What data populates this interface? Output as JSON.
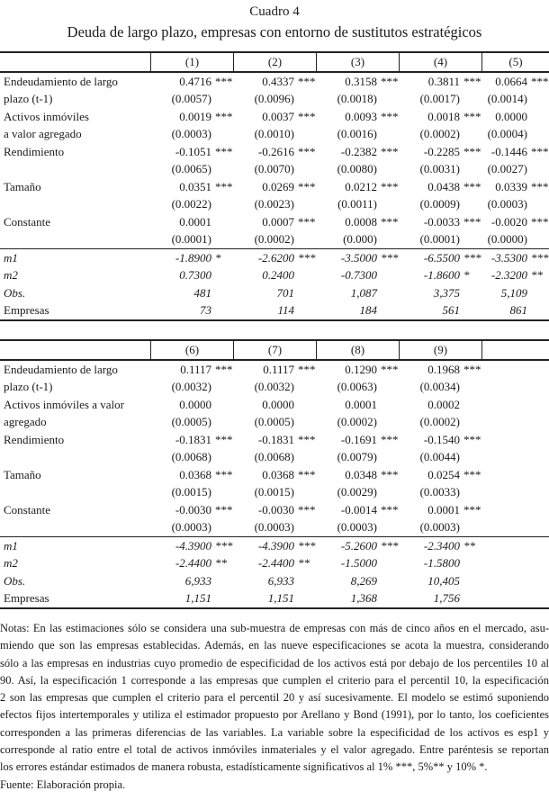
{
  "title": "Cuadro 4",
  "subtitle": "Deuda de largo plazo, empresas con entorno de sustitutos estratégicos",
  "colors": {
    "text": "#1b1b1b",
    "rule": "#222222",
    "background": "#ffffff"
  },
  "tables": [
    {
      "columns": [
        "(1)",
        "(2)",
        "(3)",
        "(4)",
        "(5)"
      ],
      "trailing_blank_header_cell": false,
      "coef_rows": [
        {
          "label": "Endeudamiento de largo",
          "cells": [
            [
              "0.4716",
              "***"
            ],
            [
              "0.4337",
              "***"
            ],
            [
              "0.3158",
              "***"
            ],
            [
              "0.3811",
              "***"
            ],
            [
              "0.0664",
              "***"
            ]
          ]
        },
        {
          "label": "plazo (t-1)",
          "cells": [
            [
              "(0.0057)",
              ""
            ],
            [
              "(0.0096)",
              ""
            ],
            [
              "(0.0018)",
              ""
            ],
            [
              "(0.0017)",
              ""
            ],
            [
              "(0.0014)",
              ""
            ]
          ]
        },
        {
          "label": "Activos inmóviles",
          "cells": [
            [
              "0.0019",
              "***"
            ],
            [
              "0.0037",
              "***"
            ],
            [
              "0.0093",
              "***"
            ],
            [
              "0.0018",
              "***"
            ],
            [
              "0.0000",
              ""
            ]
          ]
        },
        {
          "label": "a valor agregado",
          "cells": [
            [
              "(0.0003)",
              ""
            ],
            [
              "(0.0010)",
              ""
            ],
            [
              "(0.0016)",
              ""
            ],
            [
              "(0.0002)",
              ""
            ],
            [
              "(0.0004)",
              ""
            ]
          ]
        },
        {
          "label": "Rendimiento",
          "cells": [
            [
              "-0.1051",
              "***"
            ],
            [
              "-0.2616",
              "***"
            ],
            [
              "-0.2382",
              "***"
            ],
            [
              "-0.2285",
              "***"
            ],
            [
              "-0.1446",
              "***"
            ]
          ]
        },
        {
          "label": "",
          "cells": [
            [
              "(0.0065)",
              ""
            ],
            [
              "(0.0070)",
              ""
            ],
            [
              "(0.0080)",
              ""
            ],
            [
              "(0.0031)",
              ""
            ],
            [
              "(0.0027)",
              ""
            ]
          ]
        },
        {
          "label": "Tamaño",
          "cells": [
            [
              "0.0351",
              "***"
            ],
            [
              "0.0269",
              "***"
            ],
            [
              "0.0212",
              "***"
            ],
            [
              "0.0438",
              "***"
            ],
            [
              "0.0339",
              "***"
            ]
          ]
        },
        {
          "label": "",
          "cells": [
            [
              "(0.0022)",
              ""
            ],
            [
              "(0.0023)",
              ""
            ],
            [
              "(0.0011)",
              ""
            ],
            [
              "(0.0009)",
              ""
            ],
            [
              "(0.0003)",
              ""
            ]
          ]
        },
        {
          "label": "Constante",
          "cells": [
            [
              "0.0001",
              ""
            ],
            [
              "0.0007",
              "***"
            ],
            [
              "0.0008",
              "***"
            ],
            [
              "-0.0033",
              "***"
            ],
            [
              "-0.0020",
              "***"
            ]
          ]
        },
        {
          "label": "",
          "cells": [
            [
              "(0.0001)",
              ""
            ],
            [
              "(0.0002)",
              ""
            ],
            [
              "(0.000)",
              ""
            ],
            [
              "(0.0001)",
              ""
            ],
            [
              "(0.0000)",
              ""
            ]
          ]
        }
      ],
      "stat_rows": [
        {
          "label": "m1",
          "italic_label": true,
          "cells": [
            [
              "-1.8900",
              "*"
            ],
            [
              "-2.6200",
              "***"
            ],
            [
              "-3.5000",
              "***"
            ],
            [
              "-6.5500",
              "***"
            ],
            [
              "-3.5300",
              "***"
            ]
          ]
        },
        {
          "label": "m2",
          "italic_label": true,
          "cells": [
            [
              "0.7300",
              ""
            ],
            [
              "0.2400",
              ""
            ],
            [
              "-0.7300",
              ""
            ],
            [
              "-1.8600",
              "*"
            ],
            [
              "-2.3200",
              "**"
            ]
          ]
        },
        {
          "label": "Obs.",
          "italic_label": true,
          "cells": [
            [
              "481",
              ""
            ],
            [
              "701",
              ""
            ],
            [
              "1,087",
              ""
            ],
            [
              "3,375",
              ""
            ],
            [
              "5,109",
              ""
            ]
          ]
        },
        {
          "label": "Empresas",
          "italic_label": false,
          "cells": [
            [
              "73",
              ""
            ],
            [
              "114",
              ""
            ],
            [
              "184",
              ""
            ],
            [
              "561",
              ""
            ],
            [
              "861",
              ""
            ]
          ]
        }
      ]
    },
    {
      "columns": [
        "(6)",
        "(7)",
        "(8)",
        "(9)"
      ],
      "trailing_blank_header_cell": true,
      "coef_rows": [
        {
          "label": "Endeudamiento de largo",
          "cells": [
            [
              "0.1117",
              "***"
            ],
            [
              "0.1117",
              "***"
            ],
            [
              "0.1290",
              "***"
            ],
            [
              "0.1968",
              "***"
            ]
          ]
        },
        {
          "label": "plazo (t-1)",
          "cells": [
            [
              "(0.0032)",
              ""
            ],
            [
              "(0.0032)",
              ""
            ],
            [
              "(0.0063)",
              ""
            ],
            [
              "(0.0034)",
              ""
            ]
          ]
        },
        {
          "label": "Activos inmóviles a valor",
          "cells": [
            [
              "0.0000",
              ""
            ],
            [
              "0.0000",
              ""
            ],
            [
              "0.0001",
              ""
            ],
            [
              "0.0002",
              ""
            ]
          ]
        },
        {
          "label": "agregado",
          "cells": [
            [
              "(0.0005)",
              ""
            ],
            [
              "(0.0005)",
              ""
            ],
            [
              "(0.0002)",
              ""
            ],
            [
              "(0.0002)",
              ""
            ]
          ]
        },
        {
          "label": "Rendimiento",
          "cells": [
            [
              "-0.1831",
              "***"
            ],
            [
              "-0.1831",
              "***"
            ],
            [
              "-0.1691",
              "***"
            ],
            [
              "-0.1540",
              "***"
            ]
          ]
        },
        {
          "label": "",
          "cells": [
            [
              "(0.0068)",
              ""
            ],
            [
              "(0.0068)",
              ""
            ],
            [
              "(0.0079)",
              ""
            ],
            [
              "(0.0044)",
              ""
            ]
          ]
        },
        {
          "label": "Tamaño",
          "cells": [
            [
              "0.0368",
              "***"
            ],
            [
              "0.0368",
              "***"
            ],
            [
              "0.0348",
              "***"
            ],
            [
              "0.0254",
              "***"
            ]
          ]
        },
        {
          "label": "",
          "cells": [
            [
              "(0.0015)",
              ""
            ],
            [
              "(0.0015)",
              ""
            ],
            [
              "(0.0029)",
              ""
            ],
            [
              "(0.0033)",
              ""
            ]
          ]
        },
        {
          "label": "Constante",
          "cells": [
            [
              "-0.0030",
              "***"
            ],
            [
              "-0.0030",
              "***"
            ],
            [
              "-0.0014",
              "***"
            ],
            [
              "0.0001",
              "***"
            ]
          ]
        },
        {
          "label": "",
          "cells": [
            [
              "(0.0003)",
              ""
            ],
            [
              "(0.0003)",
              ""
            ],
            [
              "(0.0003)",
              ""
            ],
            [
              "(0.0003)",
              ""
            ]
          ]
        }
      ],
      "stat_rows": [
        {
          "label": "m1",
          "italic_label": true,
          "cells": [
            [
              "-4.3900",
              "***"
            ],
            [
              "-4.3900",
              "***"
            ],
            [
              "-5.2600",
              "***"
            ],
            [
              "-2.3400",
              "**"
            ]
          ]
        },
        {
          "label": "m2",
          "italic_label": true,
          "cells": [
            [
              "-2.4400",
              "**"
            ],
            [
              "-2.4400",
              "**"
            ],
            [
              "-1.5000",
              ""
            ],
            [
              "-1.5800",
              ""
            ]
          ]
        },
        {
          "label": "Obs.",
          "italic_label": true,
          "cells": [
            [
              "6,933",
              ""
            ],
            [
              "6,933",
              ""
            ],
            [
              "8,269",
              ""
            ],
            [
              "10,405",
              ""
            ]
          ]
        },
        {
          "label": "Empresas",
          "italic_label": false,
          "cells": [
            [
              "1,151",
              ""
            ],
            [
              "1,151",
              ""
            ],
            [
              "1,368",
              ""
            ],
            [
              "1,756",
              ""
            ]
          ]
        }
      ]
    }
  ],
  "notes": {
    "lines": [
      "Notas: En las estimaciones sólo se considera una sub-muestra de empresas con más de cinco años en el mercado, asu-",
      "miendo que son las empresas establecidas. Además, en las nueve especificaciones se acota la muestra, considerando",
      "sólo a las empresas en industrias cuyo promedio de especificidad de los activos está por debajo de los percentiles 10 al",
      "90. Así, la especificación 1 corresponde a las empresas que cumplen el criterio para el percentil 10, la especificación",
      "2 son las empresas que cumplen el criterio para el percentil 20 y así sucesivamente. El modelo se estimó suponiendo",
      "efectos fijos intertemporales y utiliza el estimador propuesto por Arellano y Bond (1991), por lo tanto, los coeficientes",
      "corresponden a las primeras diferencias de las variables. La variable sobre la especificidad de los activos es esp1 y",
      "corresponde al ratio entre el total de activos inmóviles inmateriales y el valor agregado. Entre paréntesis se reportan",
      "los errores estándar estimados de manera robusta, estadísticamente significativos al 1% ***, 5%** y 10% *."
    ],
    "fuente": "Fuente: Elaboración propia."
  }
}
